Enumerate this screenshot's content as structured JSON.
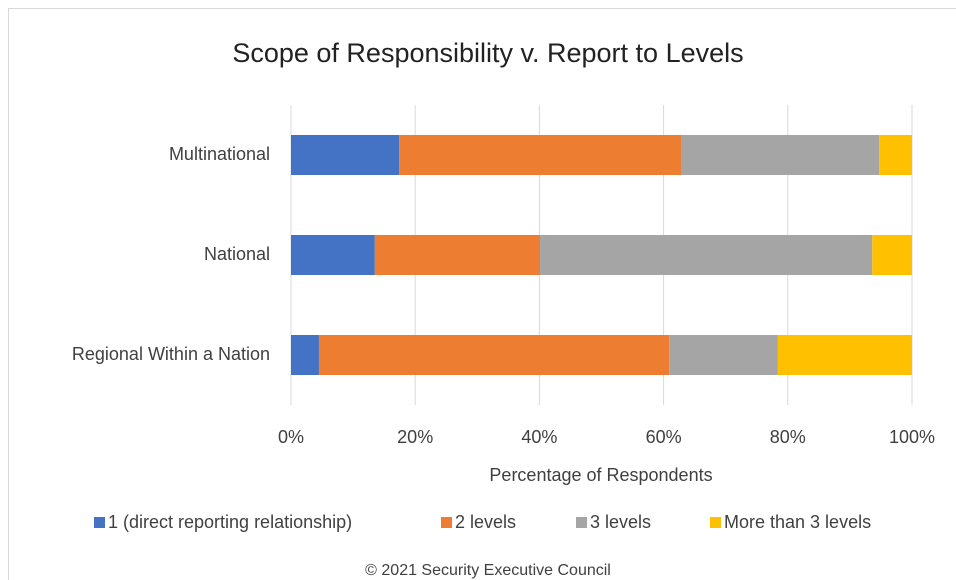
{
  "chart_data": {
    "type": "stacked_barh",
    "title": "Scope of Responsibility v. Report to Levels",
    "x_label": "Percentage of Respondents",
    "footer": "© 2021 Security Executive Council",
    "categories": [
      "Multinational",
      "National",
      "Regional Within a Nation"
    ],
    "series": [
      {
        "name": "1 (direct reporting relationship)",
        "color": "#4472c4",
        "values": [
          17.4,
          13.5,
          4.5
        ]
      },
      {
        "name": "2 levels",
        "color": "#ed7d31",
        "values": [
          45.4,
          26.6,
          56.4
        ]
      },
      {
        "name": "3 levels",
        "color": "#a5a5a5",
        "values": [
          31.9,
          53.5,
          17.5
        ]
      },
      {
        "name": "More than 3 levels",
        "color": "#ffc000",
        "values": [
          5.3,
          6.4,
          21.6
        ]
      }
    ],
    "xlim": [
      0,
      100
    ],
    "xticks": [
      {
        "value": 0,
        "label": "0%"
      },
      {
        "value": 20,
        "label": "20%"
      },
      {
        "value": 40,
        "label": "40%"
      },
      {
        "value": 60,
        "label": "60%"
      },
      {
        "value": 80,
        "label": "80%"
      },
      {
        "value": 100,
        "label": "100%"
      }
    ],
    "grid": true,
    "legend": "bottom"
  }
}
